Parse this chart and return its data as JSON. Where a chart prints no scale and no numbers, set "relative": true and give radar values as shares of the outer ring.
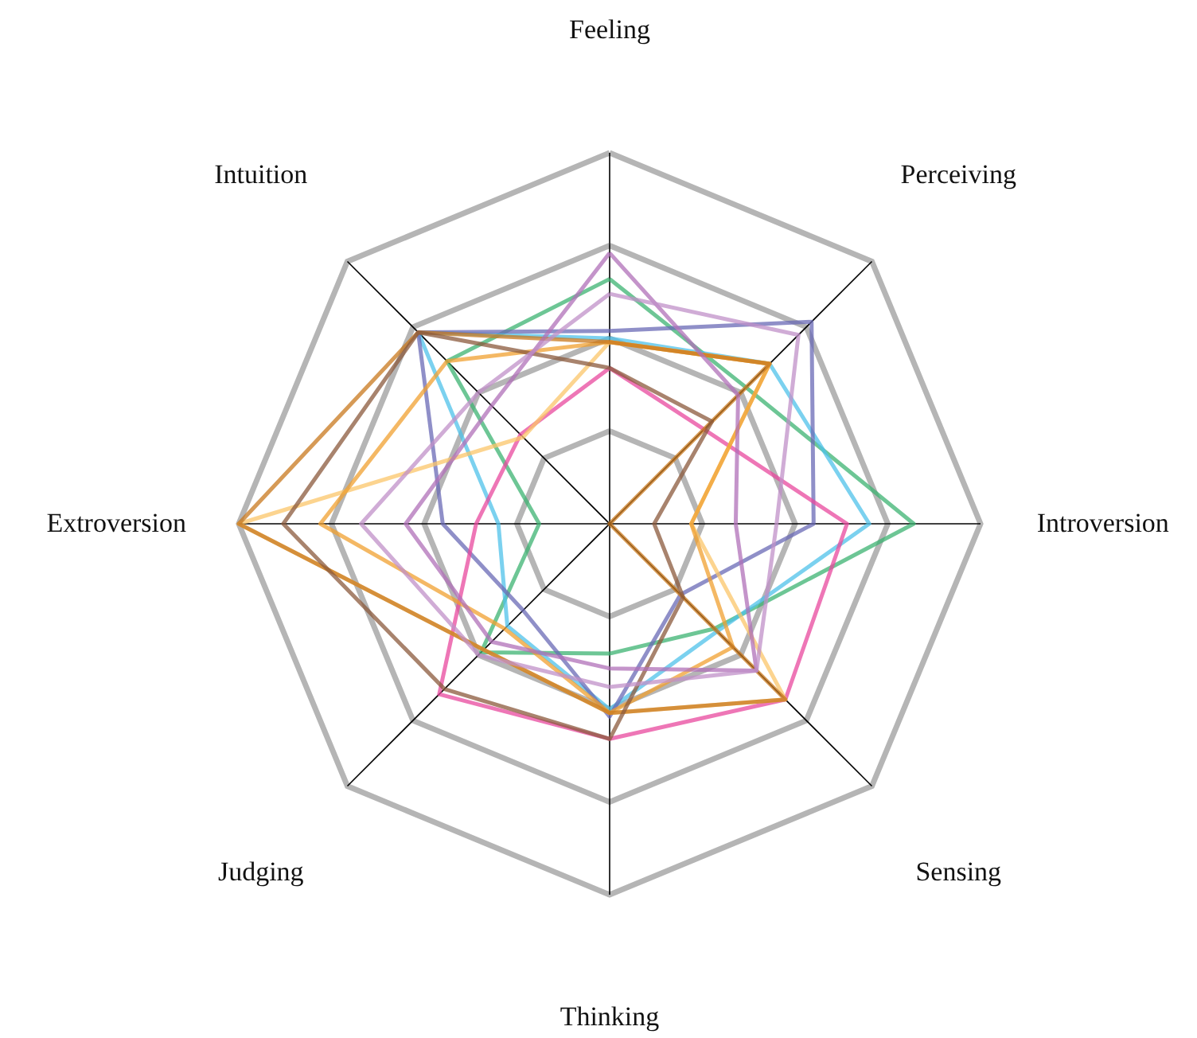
{
  "chart_data": {
    "type": "radar",
    "relative": true,
    "grid": true,
    "line_style": "solid",
    "categories": [
      "Feeling",
      "Perceiving",
      "Introversion",
      "Sensing",
      "Thinking",
      "Judging",
      "Extroversion",
      "Intuition"
    ],
    "series": [
      {
        "color": "#3cb371",
        "values": [
          0.66,
          0.52,
          0.82,
          0.4,
          0.35,
          0.49,
          0.19,
          0.62
        ]
      },
      {
        "color": "#4fc1e9",
        "values": [
          0.5,
          0.61,
          0.7,
          0.41,
          0.5,
          0.39,
          0.3,
          0.73
        ]
      },
      {
        "color": "#6a6ab5",
        "values": [
          0.52,
          0.77,
          0.55,
          0.27,
          0.52,
          0.33,
          0.45,
          0.73
        ]
      },
      {
        "color": "#e8489e",
        "values": [
          0.42,
          0.36,
          0.64,
          0.67,
          0.58,
          0.65,
          0.36,
          0.34
        ]
      },
      {
        "color": "#fbc56a",
        "values": [
          0.49,
          0.61,
          0.22,
          0.67,
          0.51,
          0.48,
          1.0,
          0.33
        ]
      },
      {
        "color": "#f0a030",
        "values": [
          0.49,
          0.61,
          0.22,
          0.47,
          0.51,
          0.4,
          0.78,
          0.62
        ]
      },
      {
        "color": "#c8781e",
        "values": [
          0.49,
          0.61,
          0.0,
          0.67,
          0.51,
          0.48,
          1.0,
          0.73
        ]
      },
      {
        "color": "#8b5a3c",
        "values": [
          0.42,
          0.39,
          0.12,
          0.28,
          0.58,
          0.63,
          0.88,
          0.73
        ]
      },
      {
        "color": "#b070b8",
        "values": [
          0.73,
          0.49,
          0.34,
          0.56,
          0.39,
          0.45,
          0.55,
          0.45
        ]
      },
      {
        "color": "#c090c8",
        "values": [
          0.62,
          0.72,
          0.45,
          0.56,
          0.44,
          0.5,
          0.67,
          0.5
        ]
      }
    ]
  }
}
